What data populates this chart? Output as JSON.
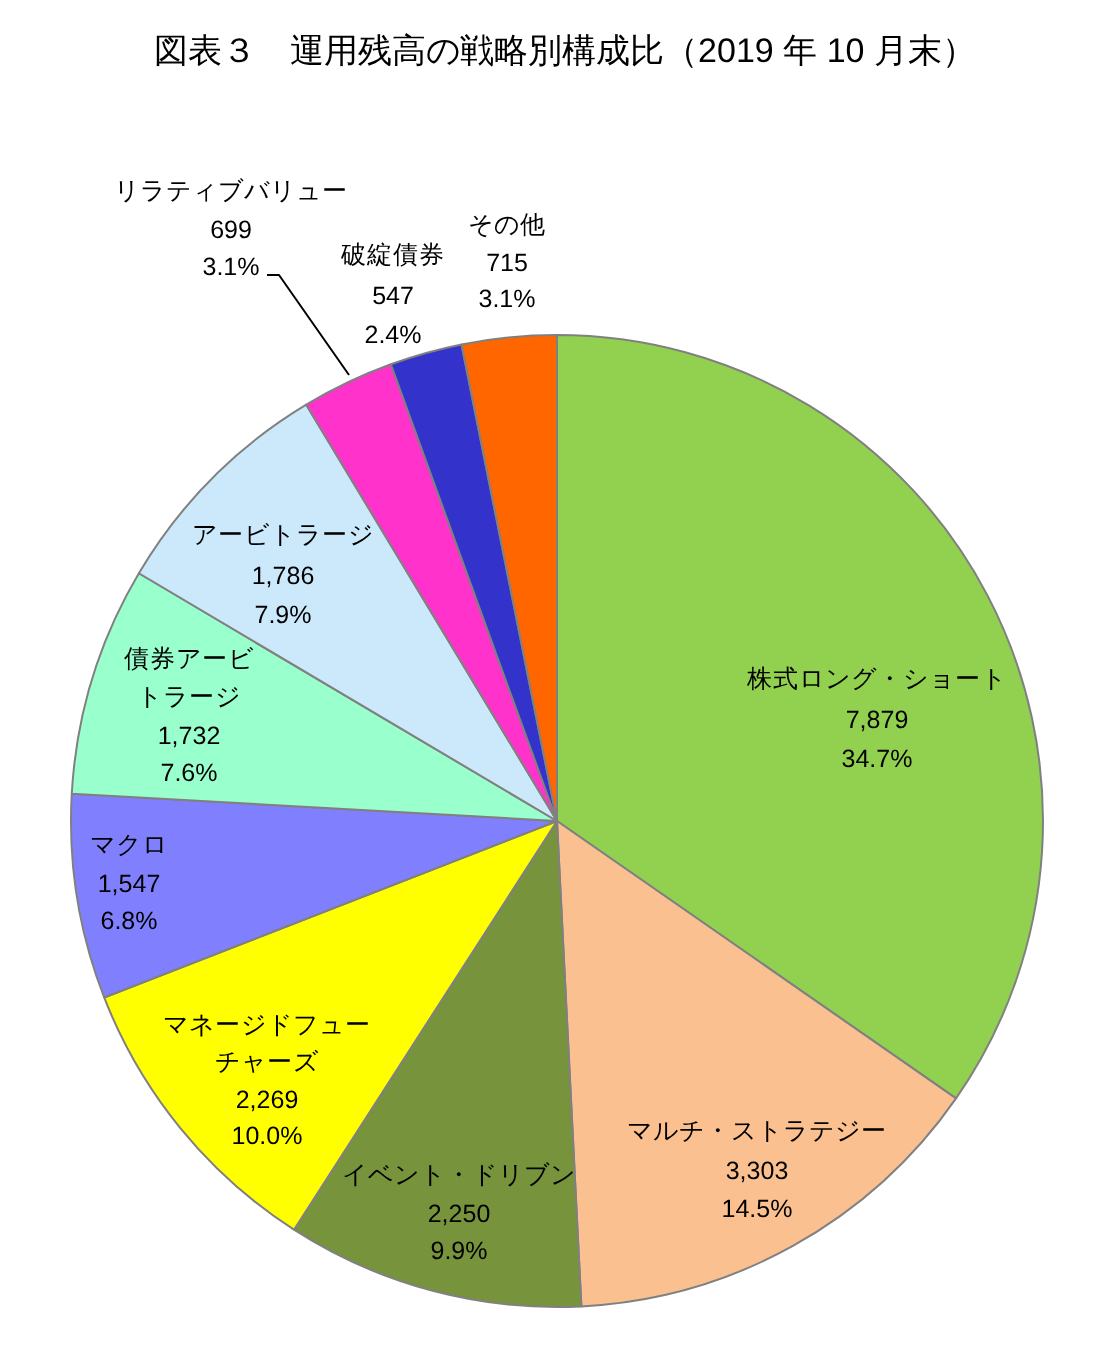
{
  "chart_data": {
    "type": "pie",
    "title": "図表３　運用残高の戦略別構成比（2019 年 10 月末）",
    "categories": [
      "株式ロング・ショート",
      "マルチ・ストラテジー",
      "イベント・ドリブン",
      "マネージドフューチャーズ",
      "マクロ",
      "債券アービトラージ",
      "アービトラージ",
      "リラティブバリュー",
      "破綻債券",
      "その他"
    ],
    "values": [
      7879,
      3303,
      2250,
      2269,
      1547,
      1732,
      1786,
      699,
      547,
      715
    ],
    "value_labels": [
      "7,879\n34.7%",
      "3,303\n14.5%",
      "2,250\n9.9%",
      "2,269\n10.0%",
      "1,547\n6.8%",
      "1,732\n7.6%",
      "1,786\n7.9%",
      "699\n3.1%",
      "547\n2.4%",
      "715\n3.1%"
    ],
    "colors": [
      "#92d050",
      "#fac090",
      "#77933c",
      "#ffff00",
      "#8080ff",
      "#99ffcc",
      "#cce9fb",
      "#ff33cc",
      "#3333cc",
      "#ff6600"
    ]
  }
}
